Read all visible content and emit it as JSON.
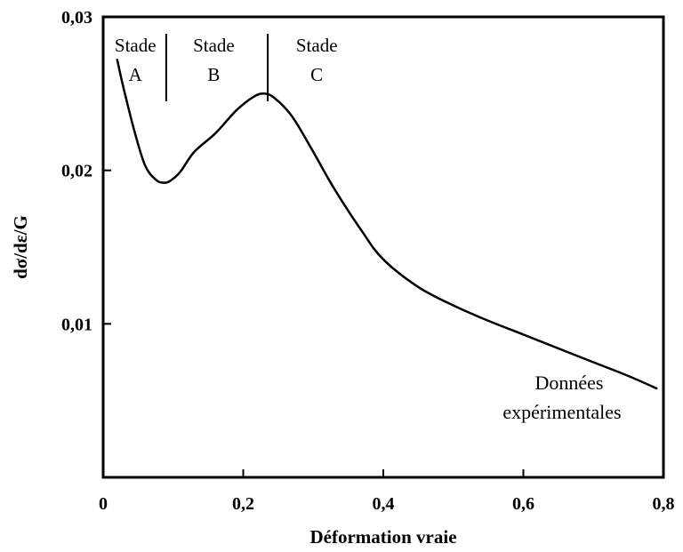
{
  "chart_data": {
    "type": "line",
    "title": "",
    "xlabel": "Déformation vraie",
    "ylabel": "dσ/dε/G",
    "xlim": [
      0,
      0.8
    ],
    "ylim": [
      0,
      0.03
    ],
    "x_ticks": [
      0,
      0.2,
      0.4,
      0.6,
      0.8
    ],
    "x_tick_labels": [
      "0",
      "0,2",
      "0,4",
      "0,6",
      "0,8"
    ],
    "y_ticks": [
      0.01,
      0.02,
      0.03
    ],
    "y_tick_labels": [
      "0,01",
      "0,02",
      "0,03"
    ],
    "grid": false,
    "series": [
      {
        "color": "#000000",
        "x": [
          0.02,
          0.03,
          0.045,
          0.06,
          0.075,
          0.085,
          0.095,
          0.11,
          0.13,
          0.16,
          0.19,
          0.215,
          0.23,
          0.245,
          0.27,
          0.3,
          0.33,
          0.37,
          0.4,
          0.45,
          0.5,
          0.55,
          0.6,
          0.65,
          0.7,
          0.75,
          0.79
        ],
        "y": [
          0.0272,
          0.0252,
          0.0225,
          0.0203,
          0.0194,
          0.0192,
          0.0193,
          0.0199,
          0.0212,
          0.0224,
          0.0239,
          0.0248,
          0.025,
          0.0247,
          0.0235,
          0.0212,
          0.0188,
          0.016,
          0.0142,
          0.0124,
          0.0112,
          0.0102,
          0.0093,
          0.0084,
          0.0075,
          0.0066,
          0.0058
        ]
      }
    ],
    "stage_dividers": [
      0.09,
      0.235
    ],
    "stages": [
      {
        "line1": "Stade",
        "line2": "A",
        "x_center": 0.046
      },
      {
        "line1": "Stade",
        "line2": "B",
        "x_center": 0.158
      },
      {
        "line1": "Stade",
        "line2": "C",
        "x_center": 0.305
      }
    ],
    "annotation": {
      "line1": "Données",
      "line2": "expérimentales",
      "x": 0.72
    }
  }
}
